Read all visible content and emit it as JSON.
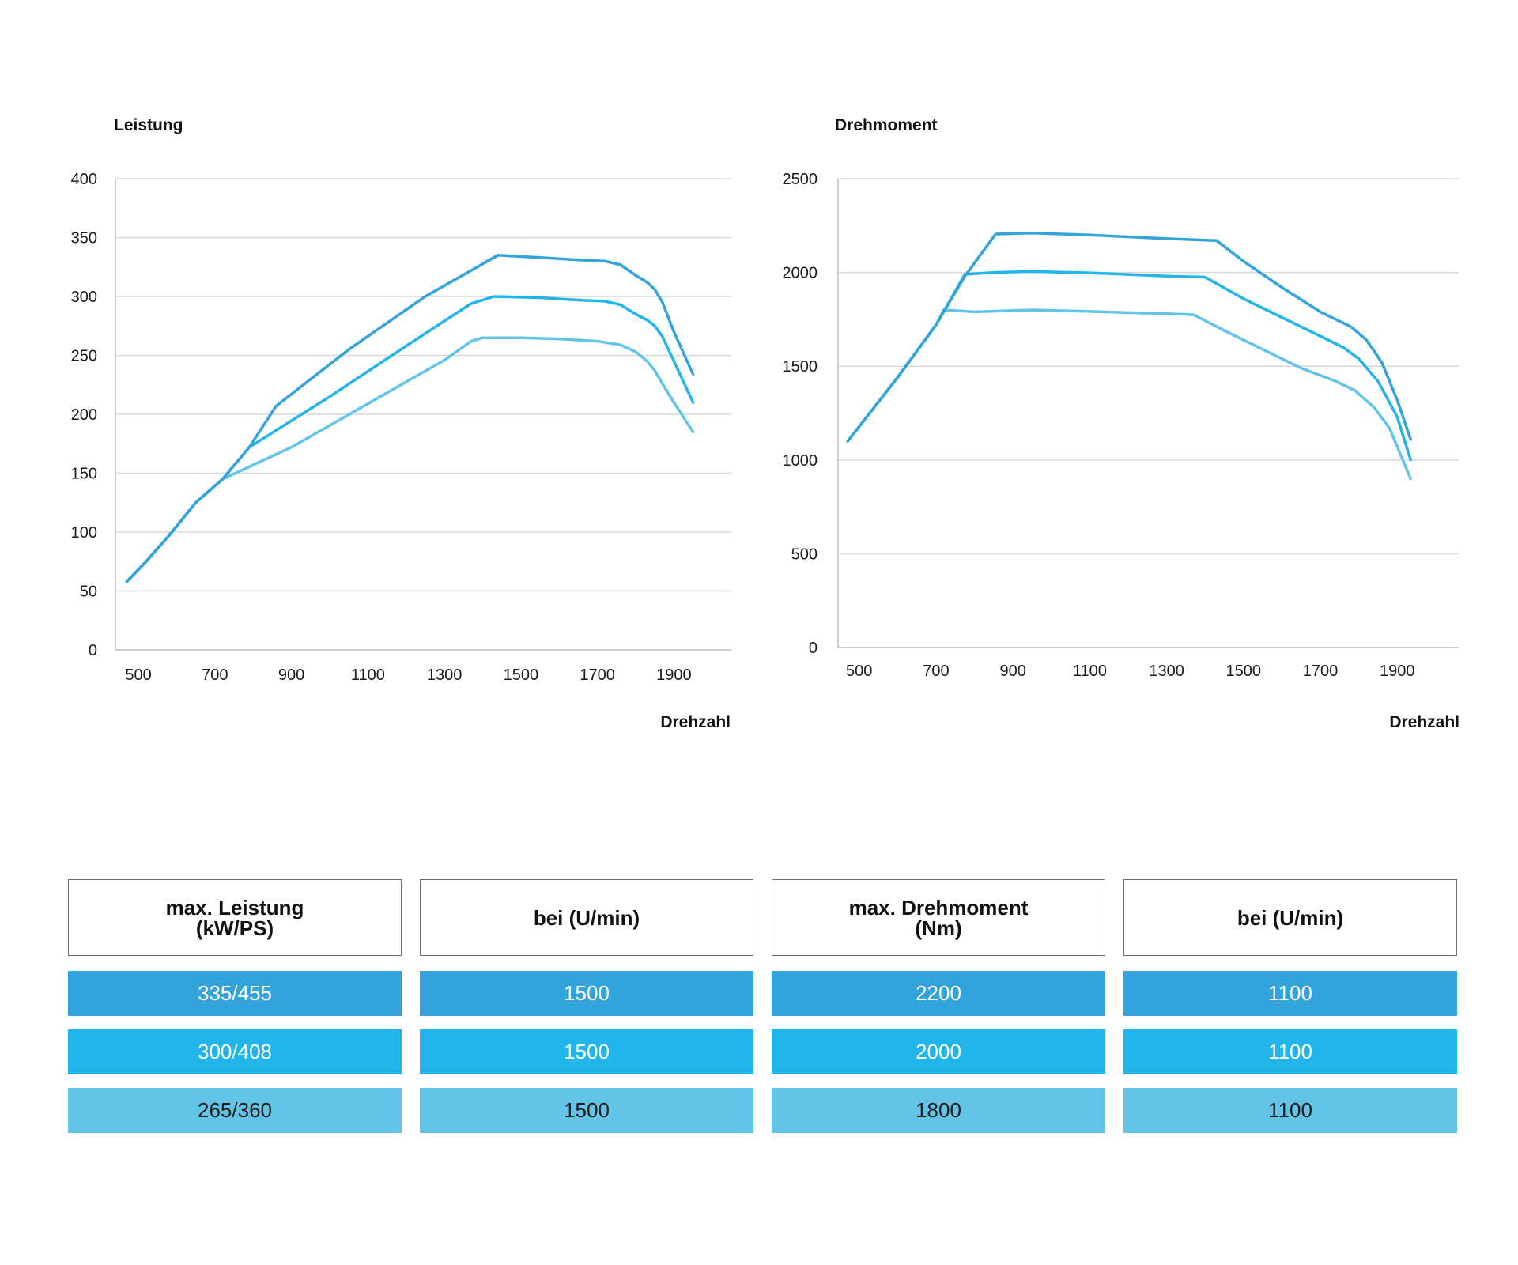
{
  "chart_data": [
    {
      "type": "line",
      "title": "Leistung",
      "xlabel": "Drehzahl",
      "ylabel": "",
      "xlim": [
        440,
        2050
      ],
      "ylim": [
        0,
        400
      ],
      "xticks": [
        500,
        700,
        900,
        1100,
        1300,
        1500,
        1700,
        1900
      ],
      "yticks": [
        0,
        50,
        100,
        150,
        200,
        250,
        300,
        350,
        400
      ],
      "grid": true,
      "series": [
        {
          "color": "#33a3db",
          "x": [
            470,
            520,
            580,
            650,
            720,
            790,
            860,
            1050,
            1250,
            1440,
            1550,
            1650,
            1720,
            1760,
            1800,
            1830,
            1850,
            1870,
            1900,
            1950
          ],
          "y": [
            58,
            75,
            97,
            125,
            145,
            172,
            207,
            255,
            300,
            335,
            333,
            331,
            330,
            327,
            318,
            312,
            306,
            295,
            270,
            234
          ]
        },
        {
          "color": "#22b5ec",
          "x": [
            470,
            520,
            580,
            650,
            720,
            790,
            1000,
            1200,
            1370,
            1430,
            1550,
            1650,
            1720,
            1760,
            1800,
            1830,
            1850,
            1870,
            1900,
            1950
          ],
          "y": [
            58,
            75,
            97,
            125,
            145,
            172,
            215,
            258,
            294,
            300,
            299,
            297,
            296,
            293,
            285,
            280,
            275,
            266,
            245,
            210
          ]
        },
        {
          "color": "#62c5e8",
          "x": [
            470,
            520,
            580,
            650,
            720,
            900,
            1100,
            1300,
            1370,
            1400,
            1500,
            1600,
            1700,
            1760,
            1800,
            1830,
            1850,
            1870,
            1900,
            1950
          ],
          "y": [
            58,
            75,
            97,
            125,
            145,
            172,
            209,
            246,
            262,
            265,
            265,
            264,
            262,
            259,
            253,
            245,
            237,
            226,
            210,
            185
          ]
        }
      ]
    },
    {
      "type": "line",
      "title": "Drehmoment",
      "xlabel": "Drehzahl",
      "ylabel": "",
      "xlim": [
        445,
        2060
      ],
      "ylim": [
        0,
        2500
      ],
      "xticks": [
        500,
        700,
        900,
        1100,
        1300,
        1500,
        1700,
        1900
      ],
      "yticks": [
        0,
        500,
        1000,
        1500,
        2000,
        2500
      ],
      "grid": true,
      "series": [
        {
          "color": "#33a3db",
          "x": [
            470,
            600,
            700,
            775,
            855,
            950,
            1100,
            1300,
            1430,
            1500,
            1600,
            1700,
            1780,
            1820,
            1860,
            1900,
            1935
          ],
          "y": [
            1100,
            1440,
            1720,
            1980,
            2205,
            2210,
            2200,
            2180,
            2170,
            2060,
            1920,
            1790,
            1710,
            1640,
            1520,
            1320,
            1110
          ]
        },
        {
          "color": "#22b5ec",
          "x": [
            470,
            600,
            700,
            775,
            850,
            950,
            1100,
            1300,
            1400,
            1500,
            1600,
            1700,
            1760,
            1800,
            1850,
            1900,
            1935
          ],
          "y": [
            1100,
            1440,
            1720,
            1990,
            2000,
            2005,
            1998,
            1980,
            1975,
            1860,
            1760,
            1660,
            1600,
            1540,
            1420,
            1230,
            1000
          ]
        },
        {
          "color": "#62c5e8",
          "x": [
            470,
            600,
            700,
            720,
            800,
            950,
            1100,
            1300,
            1370,
            1450,
            1550,
            1650,
            1740,
            1790,
            1840,
            1880,
            1935
          ],
          "y": [
            1100,
            1440,
            1720,
            1800,
            1790,
            1800,
            1792,
            1780,
            1775,
            1690,
            1590,
            1490,
            1420,
            1370,
            1280,
            1170,
            900
          ]
        }
      ]
    }
  ],
  "table": {
    "headers": [
      {
        "line1": "max. Leistung",
        "line2": "(kW/PS)"
      },
      {
        "line1": "bei (U/min)",
        "line2": ""
      },
      {
        "line1": "max. Drehmoment",
        "line2": "(Nm)"
      },
      {
        "line1": "bei (U/min)",
        "line2": ""
      }
    ],
    "rows": [
      {
        "color": "#33a3db",
        "text_color": "#ffffff",
        "cells": [
          "335/455",
          "1500",
          "2200",
          "1100"
        ]
      },
      {
        "color": "#22b5ec",
        "text_color": "#ffffff",
        "cells": [
          "300/408",
          "1500",
          "2000",
          "1100"
        ]
      },
      {
        "color": "#62c5e8",
        "text_color": "#1a1a1a",
        "cells": [
          "265/360",
          "1500",
          "1800",
          "1100"
        ]
      }
    ]
  }
}
